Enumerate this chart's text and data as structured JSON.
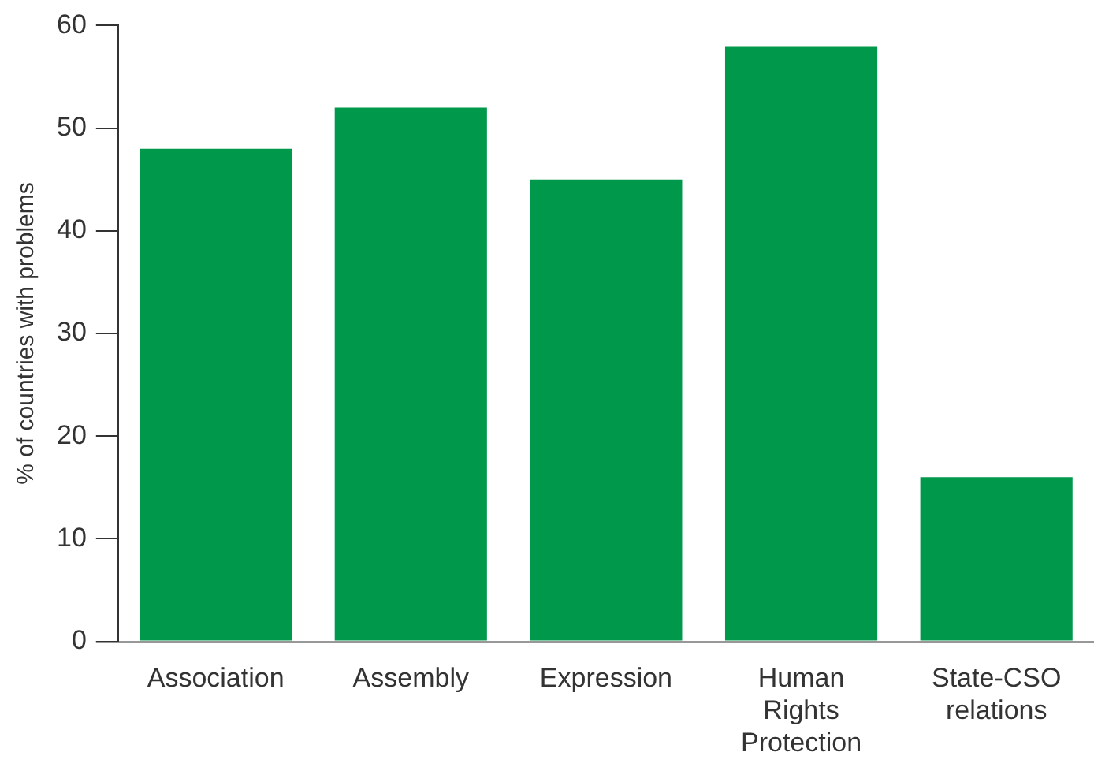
{
  "chart_data": {
    "type": "bar",
    "ylabel": "% of countries with problems",
    "categories": [
      "Association",
      "Assembly",
      "Expression",
      "Human Rights Protection",
      "State-CSO relations"
    ],
    "values": [
      48,
      52,
      45,
      58,
      16
    ],
    "color": "#00994c",
    "ylim": [
      0,
      60
    ],
    "yticks": [
      0,
      10,
      20,
      30,
      40,
      50,
      60
    ],
    "grid": false,
    "legend": false
  }
}
